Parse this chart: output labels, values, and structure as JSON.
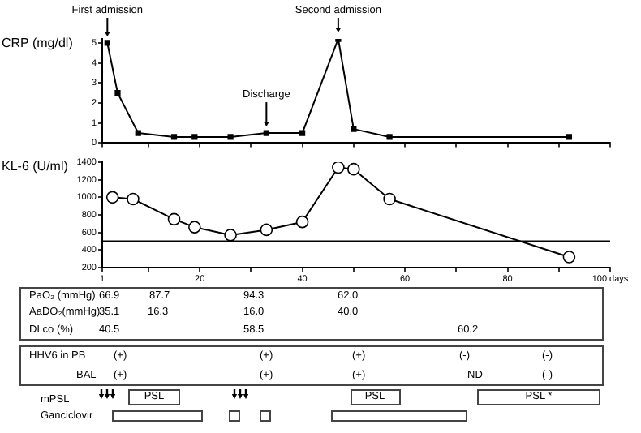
{
  "chart_data": [
    {
      "type": "line",
      "ylabel": "CRP (mg/dl)",
      "x": [
        2,
        4,
        8,
        15,
        19,
        26,
        33,
        40,
        47,
        50,
        57,
        92
      ],
      "series": [
        {
          "color": "#000000",
          "values": [
            5.0,
            2.5,
            0.5,
            0.3,
            0.3,
            0.3,
            0.5,
            0.5,
            5.2,
            0.7,
            0.3,
            0.3
          ]
        }
      ],
      "xlim": [
        1,
        100
      ],
      "xticks": [
        {
          "value": 1,
          "label": null
        },
        {
          "value": 10,
          "label": null
        },
        {
          "value": 20,
          "label": null
        },
        {
          "value": 30,
          "label": null
        },
        {
          "value": 40,
          "label": null
        },
        {
          "value": 50,
          "label": null
        },
        {
          "value": 60,
          "label": null
        },
        {
          "value": 70,
          "label": null
        },
        {
          "value": 80,
          "label": null
        },
        {
          "value": 90,
          "label": null
        },
        {
          "value": 100,
          "label": null
        }
      ],
      "ylim": [
        0,
        5.2
      ],
      "yticks": [
        0,
        1,
        2,
        3,
        4,
        5
      ],
      "tick_labels": "y",
      "marker": "square",
      "grid": false,
      "legend": false,
      "annotations": [
        {
          "text": "First admission",
          "x": 2,
          "y": 5.0
        },
        {
          "text": "Discharge",
          "x": 33,
          "y": 0.5
        },
        {
          "text": "Second admission",
          "x": 47,
          "y": 5.2
        }
      ]
    },
    {
      "type": "line",
      "ylabel": "KL-6 (U/ml)",
      "x": [
        3,
        7,
        15,
        19,
        26,
        33,
        40,
        47,
        50,
        57,
        92
      ],
      "series": [
        {
          "color": "#000000",
          "values": [
            1000,
            980,
            750,
            660,
            570,
            630,
            720,
            1340,
            1320,
            980,
            320
          ]
        }
      ],
      "xlim": [
        1,
        100
      ],
      "xticks": [
        1,
        {
          "value": 10,
          "label": null
        },
        20,
        {
          "value": 30,
          "label": null
        },
        40,
        {
          "value": 50,
          "label": null
        },
        60,
        {
          "value": 70,
          "label": null
        },
        80,
        {
          "value": 90,
          "label": null
        },
        {
          "value": 100,
          "label": "100 days"
        }
      ],
      "ylim": [
        200,
        1400
      ],
      "yticks": [
        200,
        400,
        600,
        800,
        1000,
        1200,
        1400
      ],
      "marker": "circle",
      "grid": false,
      "legend": false,
      "ref_lines": [
        {
          "axis": "y",
          "value": 500,
          "color": "#000000"
        }
      ]
    },
    {
      "type": "other",
      "annotations": [
        "PaO₂ (mmHg)",
        "66.9",
        "87.7",
        "94.3",
        "62.0",
        "AaDO₂(mmHg)",
        "35.1",
        "16.3",
        "16.0",
        "40.0",
        "DLco (%)",
        "40.5",
        "58.5",
        "60.2",
        "HHV6 in PB",
        "(+)",
        "(+)",
        "(+)",
        "(-)",
        "(-)",
        "BAL",
        "(+)",
        "(+)",
        "(+)",
        "ND",
        "(-)",
        "mPSL",
        "PSL",
        "PSL",
        "PSL *",
        "Ganciclovir"
      ]
    }
  ]
}
